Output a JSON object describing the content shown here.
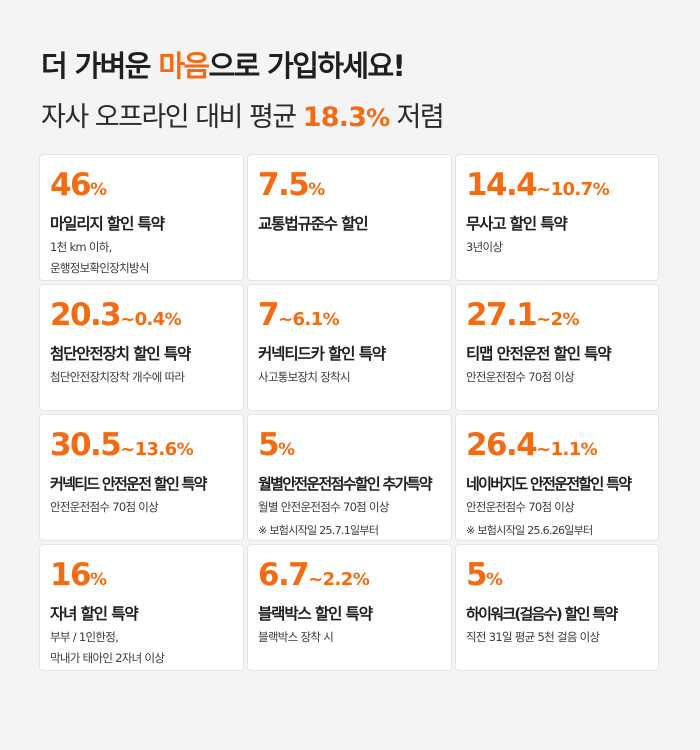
{
  "header": {
    "headline_pre": "더 가벼운 ",
    "headline_accent": "마음",
    "headline_post": "으로 가입하세요!",
    "subline_pre": "자사 오프라인 대비 평균 ",
    "subline_value": "18.3",
    "subline_unit": "%",
    "subline_post": " 저렴"
  },
  "accent_color": "#f36b12",
  "cards": [
    {
      "rate_max": "46",
      "rate_sep": "",
      "rate_min": "",
      "unit": "%",
      "title": "마일리지 할인 특약",
      "desc1": "1천 km 이하,",
      "desc2": "운행정보확인장치방식",
      "note": ""
    },
    {
      "rate_max": "7.5",
      "rate_sep": "",
      "rate_min": "",
      "unit": "%",
      "title": "교통법규준수 할인",
      "desc1": "",
      "desc2": "",
      "note": ""
    },
    {
      "rate_max": "14.4",
      "rate_sep": "~",
      "rate_min": "10.7",
      "unit": "%",
      "title": "무사고 할인 특약",
      "desc1": "3년이상",
      "desc2": "",
      "note": ""
    },
    {
      "rate_max": "20.3",
      "rate_sep": "~",
      "rate_min": "0.4",
      "unit": "%",
      "title": "첨단안전장치 할인 특약",
      "desc1": "첨단안전장치장착 개수에 따라",
      "desc2": "",
      "note": ""
    },
    {
      "rate_max": "7",
      "rate_sep": "~",
      "rate_min": "6.1",
      "unit": "%",
      "title": "커넥티드카 할인 특약",
      "desc1": "사고통보장치 장착시",
      "desc2": "",
      "note": ""
    },
    {
      "rate_max": "27.1",
      "rate_sep": "~",
      "rate_min": "2",
      "unit": "%",
      "title": "티맵 안전운전 할인 특약",
      "desc1": "안전운전점수 70점 이상",
      "desc2": "",
      "note": ""
    },
    {
      "rate_max": "30.5",
      "rate_sep": "~",
      "rate_min": "13.6",
      "unit": "%",
      "title": "커넥티드 안전운전 할인 특약",
      "desc1": "안전운전점수 70점 이상",
      "desc2": "",
      "note": ""
    },
    {
      "rate_max": "5",
      "rate_sep": "",
      "rate_min": "",
      "unit": "%",
      "title": "월별안전운전점수할인 추가특약",
      "desc1": "월별 안전운전점수 70점 이상",
      "desc2": "",
      "note": "※ 보험시작일 25.7.1일부터"
    },
    {
      "rate_max": "26.4",
      "rate_sep": "~",
      "rate_min": "1.1",
      "unit": "%",
      "title": "네이버지도 안전운전할인 특약",
      "desc1": "안전운전점수 70점 이상",
      "desc2": "",
      "note": "※ 보험시작일 25.6.26일부터"
    },
    {
      "rate_max": "16",
      "rate_sep": "",
      "rate_min": "",
      "unit": "%",
      "title": "자녀 할인 특약",
      "desc1": "부부 / 1인한정,",
      "desc2": "막내가 태아인 2자녀 이상",
      "note": ""
    },
    {
      "rate_max": "6.7",
      "rate_sep": "~",
      "rate_min": "2.2",
      "unit": "%",
      "title": "블랙박스 할인 특약",
      "desc1": "블랙박스 장착 시",
      "desc2": "",
      "note": ""
    },
    {
      "rate_max": "5",
      "rate_sep": "",
      "rate_min": "",
      "unit": "%",
      "title": "하이워크(걸음수) 할인 특약",
      "desc1": "직전 31일 평균 5천 걸음 이상",
      "desc2": "",
      "note": ""
    }
  ]
}
